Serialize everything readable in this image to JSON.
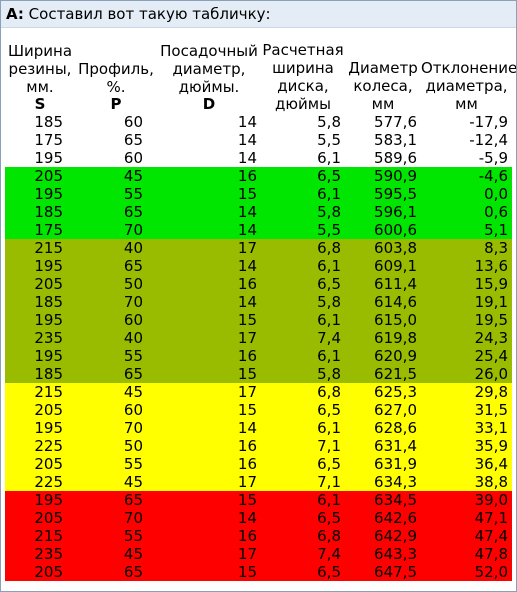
{
  "post": {
    "prefix": "A:",
    "text": "Составил вот такую табличку:"
  },
  "table": {
    "headers": [
      {
        "lines": [
          "Ширина",
          "резины,",
          "мм."
        ],
        "symbol": "S"
      },
      {
        "lines": [
          "",
          "Профиль,",
          "%."
        ],
        "symbol": "P"
      },
      {
        "lines": [
          "Посадочный",
          "диаметр,",
          "дюймы."
        ],
        "symbol": "D"
      },
      {
        "lines": [
          "Расчетная",
          "ширина",
          "диска,",
          "дюймы"
        ],
        "symbol": ""
      },
      {
        "lines": [
          "",
          "Диаметр",
          "колеса,",
          "мм"
        ],
        "symbol": ""
      },
      {
        "lines": [
          "",
          "Отклонение",
          "диаметра,",
          "мм"
        ],
        "symbol": ""
      }
    ],
    "rows": [
      {
        "group": "white",
        "cells": [
          "185",
          "60",
          "14",
          "5,8",
          "577,6",
          "-17,9"
        ]
      },
      {
        "group": "white",
        "cells": [
          "175",
          "65",
          "14",
          "5,5",
          "583,1",
          "-12,4"
        ]
      },
      {
        "group": "white",
        "cells": [
          "195",
          "60",
          "14",
          "6,1",
          "589,6",
          "-5,9"
        ]
      },
      {
        "group": "green",
        "cells": [
          "205",
          "45",
          "16",
          "6,5",
          "590,9",
          "-4,6"
        ]
      },
      {
        "group": "green",
        "cells": [
          "195",
          "55",
          "15",
          "6,1",
          "595,5",
          "0,0"
        ]
      },
      {
        "group": "green",
        "cells": [
          "185",
          "65",
          "14",
          "5,8",
          "596,1",
          "0,6"
        ]
      },
      {
        "group": "green",
        "cells": [
          "175",
          "70",
          "14",
          "5,5",
          "600,6",
          "5,1"
        ]
      },
      {
        "group": "olive",
        "cells": [
          "215",
          "40",
          "17",
          "6,8",
          "603,8",
          "8,3"
        ]
      },
      {
        "group": "olive",
        "cells": [
          "195",
          "65",
          "14",
          "6,1",
          "609,1",
          "13,6"
        ]
      },
      {
        "group": "olive",
        "cells": [
          "205",
          "50",
          "16",
          "6,5",
          "611,4",
          "15,9"
        ]
      },
      {
        "group": "olive",
        "cells": [
          "185",
          "70",
          "14",
          "5,8",
          "614,6",
          "19,1"
        ]
      },
      {
        "group": "olive",
        "cells": [
          "195",
          "60",
          "15",
          "6,1",
          "615,0",
          "19,5"
        ]
      },
      {
        "group": "olive",
        "cells": [
          "235",
          "40",
          "17",
          "7,4",
          "619,8",
          "24,3"
        ]
      },
      {
        "group": "olive",
        "cells": [
          "195",
          "55",
          "16",
          "6,1",
          "620,9",
          "25,4"
        ]
      },
      {
        "group": "olive",
        "cells": [
          "185",
          "65",
          "15",
          "5,8",
          "621,5",
          "26,0"
        ]
      },
      {
        "group": "yellow",
        "cells": [
          "215",
          "45",
          "17",
          "6,8",
          "625,3",
          "29,8"
        ]
      },
      {
        "group": "yellow",
        "cells": [
          "205",
          "60",
          "15",
          "6,5",
          "627,0",
          "31,5"
        ]
      },
      {
        "group": "yellow",
        "cells": [
          "195",
          "70",
          "14",
          "6,1",
          "628,6",
          "33,1"
        ]
      },
      {
        "group": "yellow",
        "cells": [
          "225",
          "50",
          "16",
          "7,1",
          "631,4",
          "35,9"
        ]
      },
      {
        "group": "yellow",
        "cells": [
          "205",
          "55",
          "16",
          "6,5",
          "631,9",
          "36,4"
        ]
      },
      {
        "group": "yellow",
        "cells": [
          "225",
          "45",
          "17",
          "7,1",
          "634,3",
          "38,8"
        ]
      },
      {
        "group": "red",
        "cells": [
          "195",
          "65",
          "15",
          "6,1",
          "634,5",
          "39,0"
        ]
      },
      {
        "group": "red",
        "cells": [
          "205",
          "70",
          "14",
          "6,5",
          "642,6",
          "47,1"
        ]
      },
      {
        "group": "red",
        "cells": [
          "215",
          "55",
          "16",
          "6,8",
          "642,9",
          "47,4"
        ]
      },
      {
        "group": "red",
        "cells": [
          "235",
          "45",
          "17",
          "7,4",
          "643,3",
          "47,8"
        ]
      },
      {
        "group": "red",
        "cells": [
          "205",
          "65",
          "15",
          "6,5",
          "647,5",
          "52,0"
        ]
      }
    ]
  },
  "colors": {
    "white": "#ffffff",
    "green": "#00e600",
    "olive": "#99bb00",
    "yellow": "#ffff00",
    "red": "#ff0000"
  }
}
